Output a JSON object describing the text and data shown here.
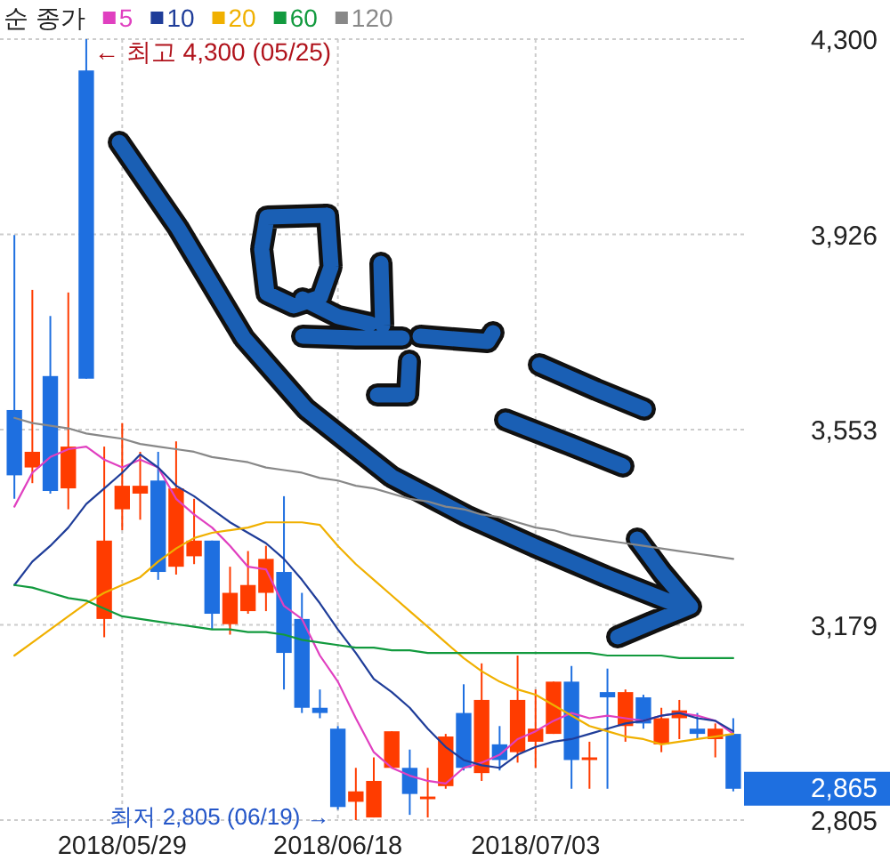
{
  "chart_data": {
    "type": "candlestick",
    "categories": [
      null,
      null,
      null,
      null,
      null,
      null,
      "2018/05/29",
      null,
      null,
      null,
      null,
      null,
      null,
      null,
      null,
      null,
      null,
      null,
      "2018/06/18",
      null,
      null,
      null,
      null,
      null,
      null,
      null,
      null,
      null,
      null,
      "2018/07/03",
      null,
      null,
      null,
      null,
      null,
      null,
      null,
      null,
      null,
      null,
      null
    ],
    "ohlc": [
      [
        3590,
        3925,
        3420,
        3465
      ],
      [
        3480,
        3820,
        3450,
        3510
      ],
      [
        3655,
        3770,
        3430,
        3435
      ],
      [
        3440,
        3815,
        3400,
        3520
      ],
      [
        4240,
        4300,
        3650,
        3650
      ],
      [
        3190,
        3520,
        3155,
        3340
      ],
      [
        3400,
        3565,
        3360,
        3445
      ],
      [
        3430,
        3510,
        3380,
        3445
      ],
      [
        3455,
        3510,
        3265,
        3280
      ],
      [
        3290,
        3530,
        3275,
        3440
      ],
      [
        3310,
        3420,
        3295,
        3340
      ],
      [
        3340,
        3340,
        3170,
        3200
      ],
      [
        3180,
        3290,
        3160,
        3240
      ],
      [
        3205,
        3320,
        3200,
        3255
      ],
      [
        3240,
        3330,
        3205,
        3305
      ],
      [
        3280,
        3425,
        3055,
        3125
      ],
      [
        3190,
        3240,
        3010,
        3020
      ],
      [
        3020,
        3055,
        3000,
        3010
      ],
      [
        2980,
        2985,
        2825,
        2830
      ],
      [
        2840,
        2905,
        2805,
        2860
      ],
      [
        2810,
        2925,
        2810,
        2880
      ],
      [
        2905,
        2975,
        2905,
        2975
      ],
      [
        2905,
        2940,
        2815,
        2855
      ],
      [
        2845,
        2905,
        2810,
        2850
      ],
      [
        2870,
        2970,
        2865,
        2965
      ],
      [
        3010,
        3065,
        2900,
        2905
      ],
      [
        2895,
        3105,
        2880,
        3035
      ],
      [
        2950,
        2985,
        2900,
        2920
      ],
      [
        2935,
        3120,
        2915,
        3035
      ],
      [
        2955,
        3055,
        2905,
        2980
      ],
      [
        2970,
        3070,
        2970,
        3070
      ],
      [
        3070,
        3100,
        2865,
        2920
      ],
      [
        2920,
        2955,
        2865,
        2925
      ],
      [
        3050,
        3095,
        2865,
        3040
      ],
      [
        2985,
        3055,
        2955,
        3050
      ],
      [
        3040,
        3045,
        2980,
        2990
      ],
      [
        2950,
        3020,
        2935,
        3000
      ],
      [
        3000,
        3035,
        2960,
        3015
      ],
      [
        2980,
        3010,
        2960,
        2970
      ],
      [
        2960,
        2990,
        2925,
        2980
      ],
      [
        2970,
        3000,
        2860,
        2865
      ]
    ],
    "colors": [
      "#1e6fe0",
      "#ff3c00",
      "#1e6fe0",
      "#ff3c00",
      "#1e6fe0",
      "#ff3c00",
      "#ff3c00",
      "#ff3c00",
      "#1e6fe0",
      "#ff3c00",
      "#ff3c00",
      "#1e6fe0",
      "#ff3c00",
      "#ff3c00",
      "#ff3c00",
      "#1e6fe0",
      "#1e6fe0",
      "#1e6fe0",
      "#1e6fe0",
      "#ff3c00",
      "#ff3c00",
      "#ff3c00",
      "#1e6fe0",
      "#ff3c00",
      "#ff3c00",
      "#1e6fe0",
      "#ff3c00",
      "#1e6fe0",
      "#ff3c00",
      "#ff3c00",
      "#ff3c00",
      "#1e6fe0",
      "#ff3c00",
      "#1e6fe0",
      "#ff3c00",
      "#1e6fe0",
      "#ff3c00",
      "#ff3c00",
      "#1e6fe0",
      "#ff3c00",
      "#1e6fe0"
    ],
    "series": [
      {
        "name": "5",
        "type": "line",
        "color": "#e040c0",
        "values": [
          3405,
          3470,
          3500,
          3515,
          3520,
          3495,
          3480,
          3495,
          3480,
          3420,
          3390,
          3365,
          3330,
          3290,
          3285,
          3215,
          3190,
          3120,
          3070,
          3000,
          2935,
          2905,
          2890,
          2880,
          2875,
          2905,
          2915,
          2930,
          2960,
          2975,
          2995,
          3010,
          3000,
          3005,
          3000,
          2995,
          3005,
          3010,
          3005,
          2995,
          2970
        ]
      },
      {
        "name": "10",
        "type": "line",
        "color": "#1f3d99",
        "values": [
          3255,
          3300,
          3330,
          3365,
          3410,
          3440,
          3470,
          3505,
          3480,
          3445,
          3425,
          3400,
          3375,
          3355,
          3335,
          3305,
          3265,
          3220,
          3170,
          3125,
          3075,
          3050,
          3020,
          2980,
          2945,
          2920,
          2910,
          2905,
          2930,
          2945,
          2955,
          2960,
          2970,
          2980,
          2990,
          2995,
          3005,
          3010,
          3000,
          2995,
          2975
        ]
      },
      {
        "name": "20",
        "type": "line",
        "color": "#f0b000",
        "values": [
          3120,
          3145,
          3170,
          3195,
          3220,
          3240,
          3255,
          3270,
          3300,
          3325,
          3345,
          3355,
          3360,
          3365,
          3375,
          3375,
          3375,
          3370,
          3330,
          3295,
          3265,
          3235,
          3205,
          3175,
          3145,
          3115,
          3090,
          3070,
          3055,
          3045,
          3025,
          3005,
          2985,
          2975,
          2965,
          2960,
          2950,
          2955,
          2960,
          2965,
          2970
        ]
      },
      {
        "name": "60",
        "type": "line",
        "color": "#129a3e",
        "values": [
          3255,
          3250,
          3240,
          3230,
          3225,
          3210,
          3195,
          3190,
          3185,
          3180,
          3175,
          3170,
          3170,
          3165,
          3165,
          3160,
          3150,
          3145,
          3140,
          3135,
          3135,
          3130,
          3130,
          3125,
          3125,
          3125,
          3125,
          3125,
          3125,
          3125,
          3125,
          3125,
          3125,
          3120,
          3120,
          3120,
          3120,
          3115,
          3115,
          3115,
          3115
        ]
      },
      {
        "name": "120",
        "type": "line",
        "color": "#888888",
        "values": [
          3575,
          3565,
          3560,
          3555,
          3545,
          3540,
          3535,
          3525,
          3520,
          3515,
          3510,
          3500,
          3495,
          3490,
          3480,
          3475,
          3470,
          3460,
          3455,
          3445,
          3440,
          3430,
          3420,
          3415,
          3405,
          3400,
          3390,
          3385,
          3375,
          3365,
          3360,
          3350,
          3345,
          3340,
          3335,
          3330,
          3325,
          3320,
          3315,
          3310,
          3305
        ]
      }
    ],
    "ylim": [
      2805,
      4300
    ],
    "yticks": [
      {
        "value": 2805,
        "label": "2,805"
      },
      {
        "value": 3178.75,
        "label": "3,179"
      },
      {
        "value": 3552.5,
        "label": "3,553"
      },
      {
        "value": 3926.25,
        "label": "3,926"
      },
      {
        "value": 4300,
        "label": "4,300"
      }
    ],
    "grid": true,
    "legend": "top left",
    "legend_title": "순 종가",
    "annotations": [
      "← 최고 4,300 (05/25)",
      "최저 2,805 (06/19) →",
      "2,865"
    ]
  }
}
